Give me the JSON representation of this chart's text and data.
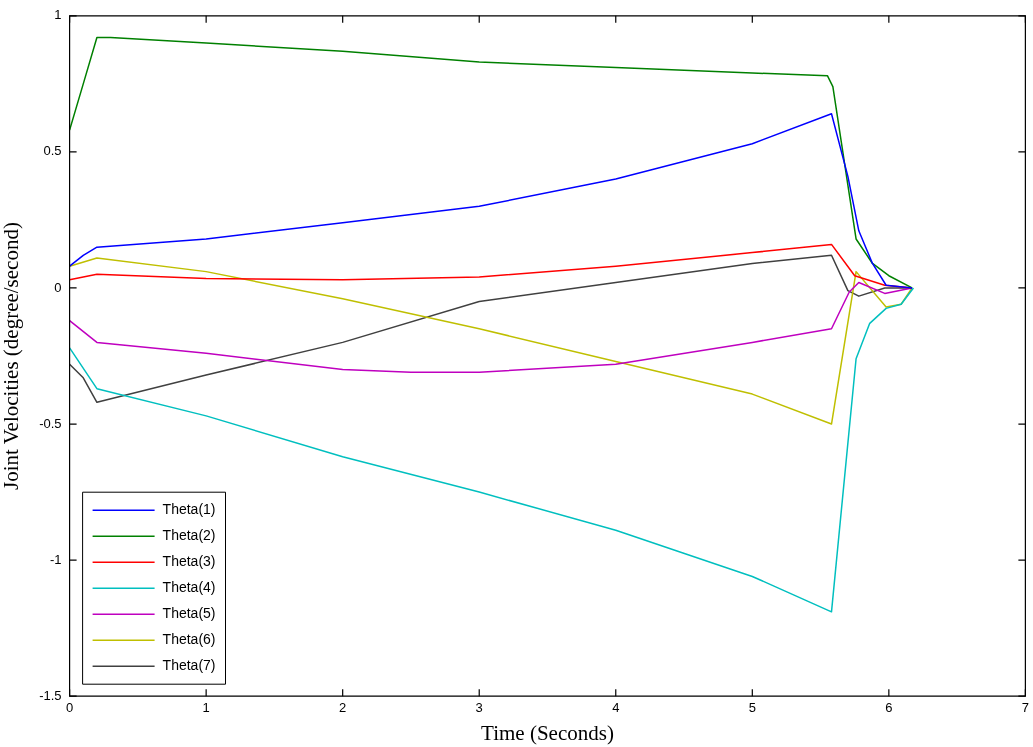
{
  "chart_data": {
    "type": "line",
    "xlabel": "Time (Seconds)",
    "ylabel": "Joint Velocities (degree/second)",
    "xlim": [
      0,
      7
    ],
    "xticks": [
      0,
      1,
      2,
      3,
      4,
      5,
      6,
      7
    ],
    "ylim": [
      -1.5,
      1
    ],
    "yticks": [
      -1.5,
      -1,
      -0.5,
      0,
      0.5,
      1
    ],
    "legend": "bottom left",
    "marker": "none",
    "line_style": "solid",
    "series": [
      {
        "name": "Theta(1)",
        "color": "#0000ff",
        "x": [
          0,
          0.1,
          0.2,
          1,
          2,
          3,
          4,
          5,
          5.58,
          5.7,
          5.78,
          5.88,
          5.98,
          6.17
        ],
        "values": [
          0.08,
          0.12,
          0.15,
          0.18,
          0.24,
          0.3,
          0.4,
          0.53,
          0.64,
          0.41,
          0.21,
          0.09,
          0.01,
          0
        ]
      },
      {
        "name": "Theta(2)",
        "color": "#008000",
        "x": [
          0,
          0.1,
          0.2,
          0.3,
          1,
          2,
          3,
          4,
          5,
          5.55,
          5.59,
          5.76,
          5.88,
          6,
          6.17
        ],
        "values": [
          0.58,
          0.75,
          0.92,
          0.92,
          0.9,
          0.87,
          0.83,
          0.81,
          0.79,
          0.78,
          0.74,
          0.18,
          0.09,
          0.045,
          0
        ]
      },
      {
        "name": "Theta(3)",
        "color": "#ff0000",
        "x": [
          0,
          0.2,
          1,
          2,
          3,
          4,
          5,
          5.58,
          5.75,
          5.97,
          6.17
        ],
        "values": [
          0.03,
          0.05,
          0.035,
          0.03,
          0.04,
          0.08,
          0.13,
          0.16,
          0.045,
          0.01,
          0
        ]
      },
      {
        "name": "Theta(4)",
        "color": "#00bfbf",
        "x": [
          0,
          0.2,
          1,
          2,
          3,
          4,
          5,
          5.58,
          5.76,
          5.86,
          5.98,
          6.09,
          6.18
        ],
        "values": [
          -0.22,
          -0.37,
          -0.47,
          -0.62,
          -0.75,
          -0.89,
          -1.06,
          -1.19,
          -0.26,
          -0.13,
          -0.075,
          -0.06,
          0
        ]
      },
      {
        "name": "Theta(5)",
        "color": "#bf00bf",
        "x": [
          0,
          0.2,
          1,
          2,
          2.5,
          3,
          4,
          5,
          5.58,
          5.71,
          5.78,
          5.97,
          6.17
        ],
        "values": [
          -0.12,
          -0.2,
          -0.24,
          -0.3,
          -0.31,
          -0.31,
          -0.28,
          -0.2,
          -0.15,
          -0.015,
          0.02,
          -0.02,
          0
        ]
      },
      {
        "name": "Theta(6)",
        "color": "#bfbf00",
        "x": [
          0,
          0.2,
          1,
          2,
          3,
          4,
          5,
          5.58,
          5.76,
          5.98,
          6.09,
          6.17
        ],
        "values": [
          0.08,
          0.11,
          0.06,
          -0.04,
          -0.15,
          -0.27,
          -0.39,
          -0.5,
          0.06,
          -0.07,
          -0.06,
          0
        ]
      },
      {
        "name": "Theta(7)",
        "color": "#404040",
        "x": [
          0,
          0.1,
          0.2,
          1,
          2,
          3,
          4,
          5,
          5.58,
          5.7,
          5.78,
          5.97,
          6.17
        ],
        "values": [
          -0.28,
          -0.33,
          -0.42,
          -0.32,
          -0.2,
          -0.05,
          0.02,
          0.09,
          0.12,
          -0.01,
          -0.03,
          0,
          0
        ]
      }
    ]
  }
}
